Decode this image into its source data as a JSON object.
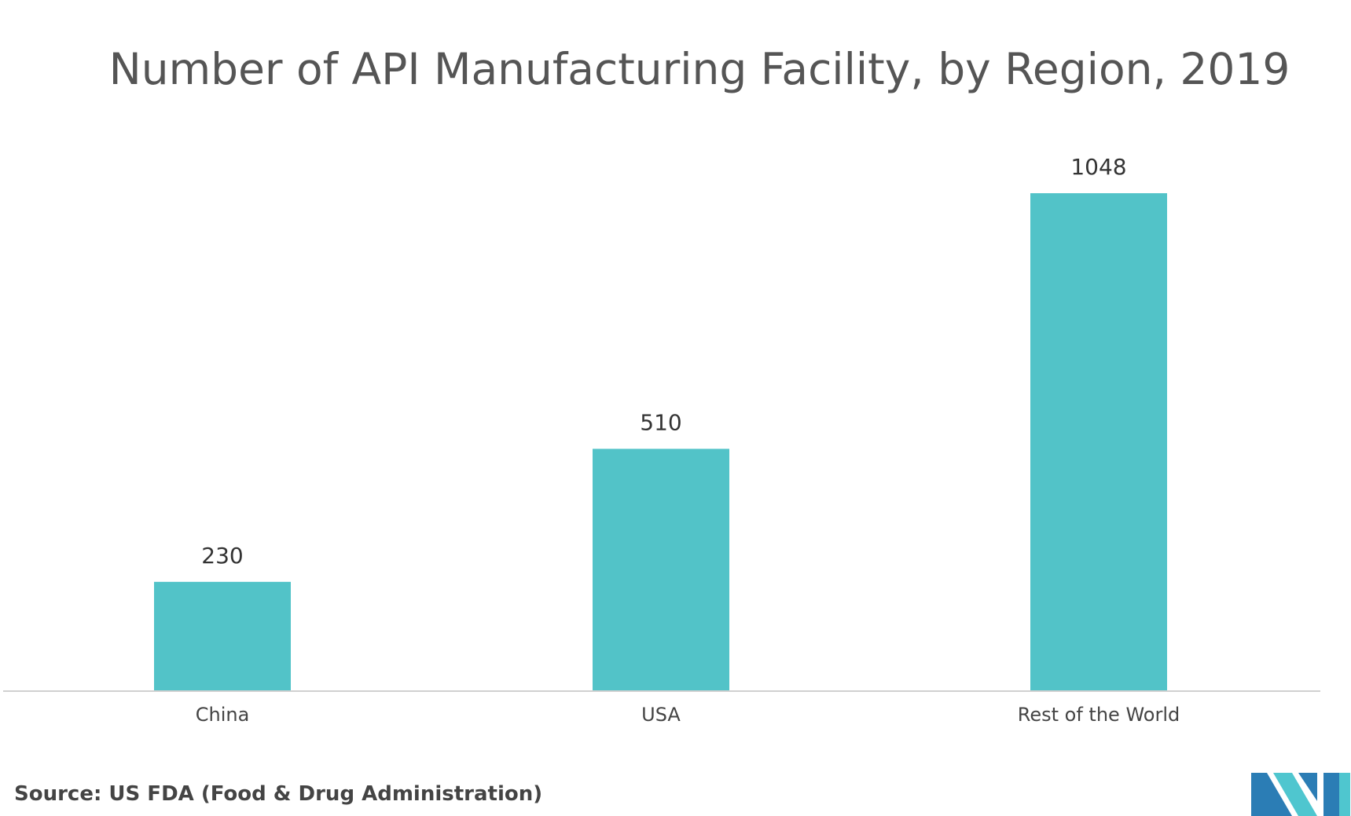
{
  "chart_data": {
    "type": "bar",
    "title": "Number of API Manufacturing Facility, by Region, 2019",
    "categories": [
      "China",
      "USA",
      "Rest of the World"
    ],
    "values": [
      230,
      510,
      1048
    ],
    "xlabel": "",
    "ylabel": "",
    "ylim": [
      0,
      1048
    ],
    "grid": false,
    "data_labels": [
      "230",
      "510",
      "1048"
    ],
    "bar_color": "#52c3c8"
  },
  "source": "Source: US FDA (Food & Drug Administration)",
  "colors": {
    "bar": "#52c3c8",
    "logo_dark": "#2b7db5",
    "logo_light": "#4fc6cf"
  }
}
